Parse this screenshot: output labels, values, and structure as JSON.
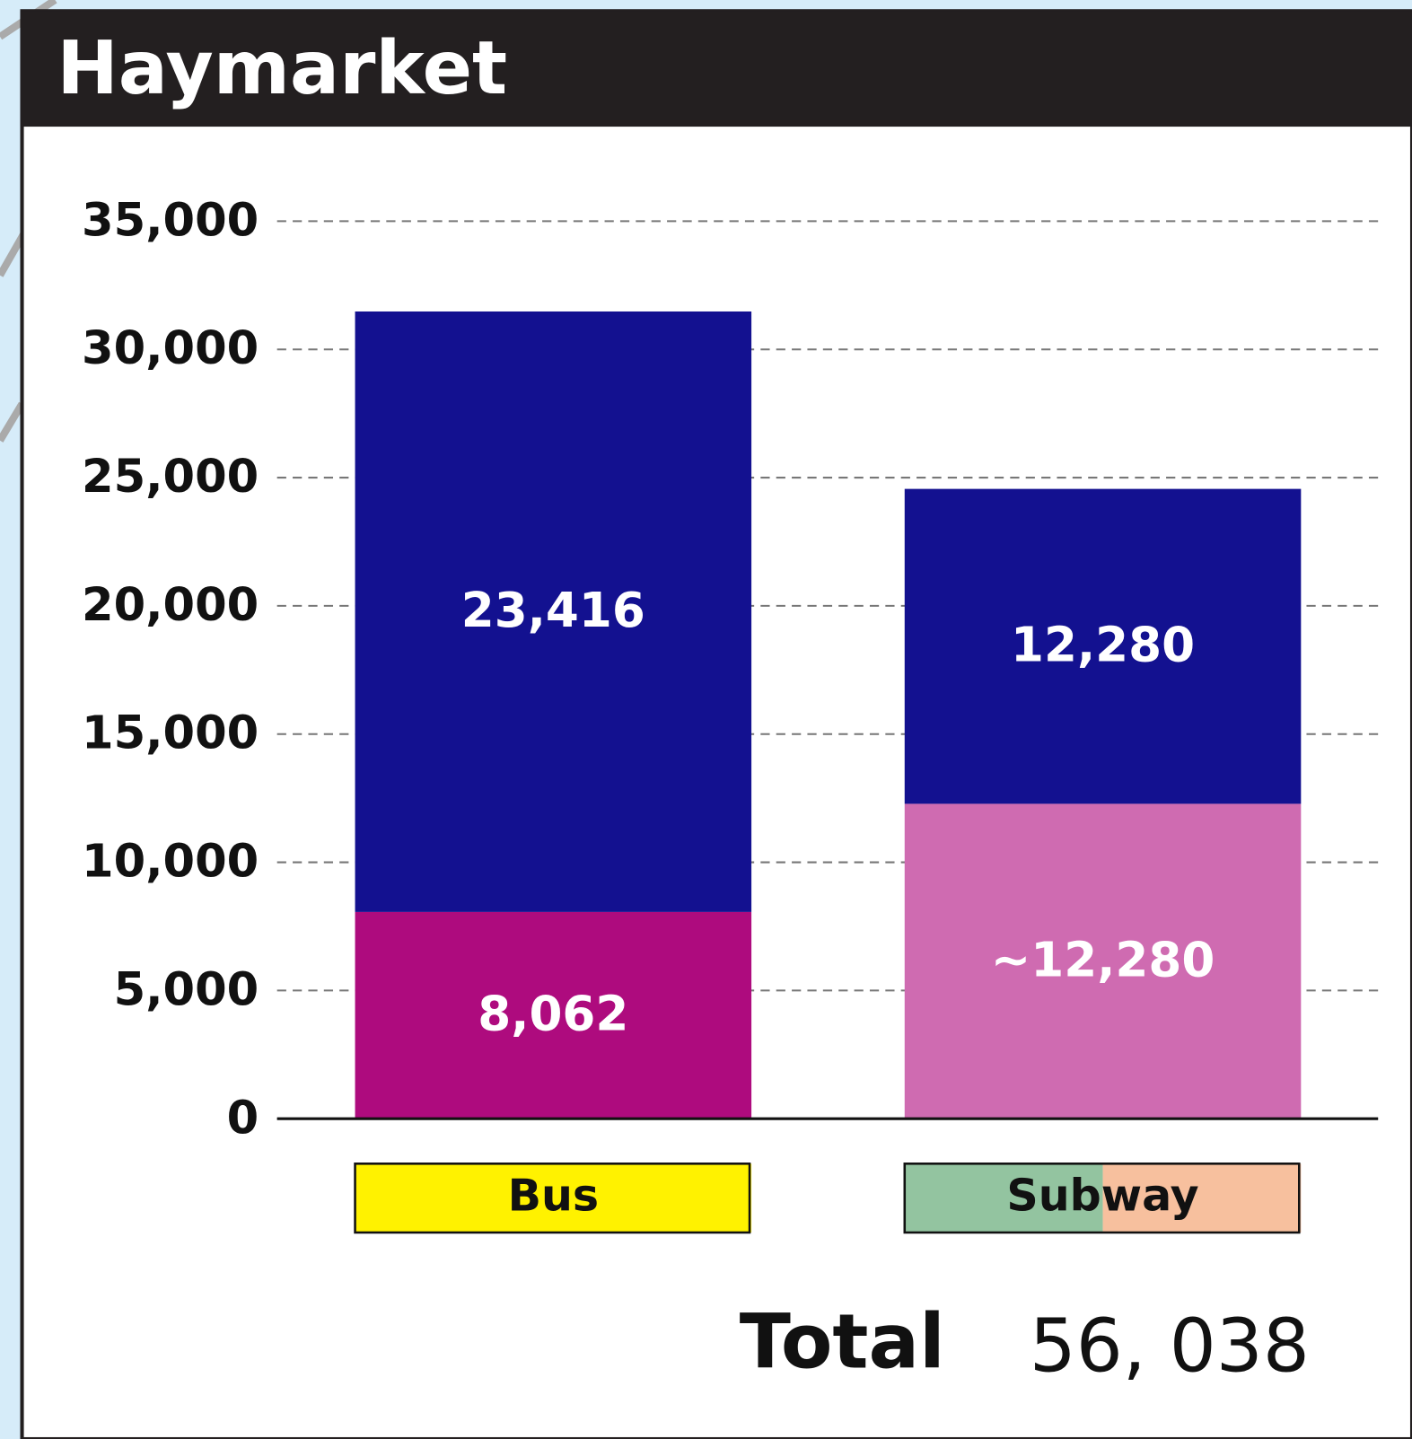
{
  "chart_data": {
    "type": "stacked_bar",
    "title": "Haymarket",
    "categories": [
      "Bus",
      "Subway"
    ],
    "category_colors": [
      [
        "#fff200"
      ],
      [
        "#93c4a0",
        "#f7c09e"
      ]
    ],
    "series": [
      {
        "colors": [
          "#ae0b7e",
          "#cf6bb1"
        ],
        "values": [
          8062,
          12280
        ],
        "value_labels": [
          "8,062",
          "~12,280"
        ]
      },
      {
        "colors": [
          "#131190",
          "#131190"
        ],
        "values": [
          23416,
          12280
        ],
        "value_labels": [
          "23,416",
          "12,280"
        ]
      }
    ],
    "ylim": [
      0,
      35000
    ],
    "yticks": [
      0,
      {
        "value": 5000,
        "label": "5,000"
      },
      {
        "value": 10000,
        "label": "10,000"
      },
      {
        "value": 15000,
        "label": "15,000"
      },
      {
        "value": 20000,
        "label": "20,000"
      },
      {
        "value": 25000,
        "label": "25,000"
      },
      {
        "value": 30000,
        "label": "30,000"
      },
      {
        "value": 35000,
        "label": "35,000"
      }
    ],
    "grid": true,
    "total_label": "Total",
    "total_value": "56, 038"
  }
}
